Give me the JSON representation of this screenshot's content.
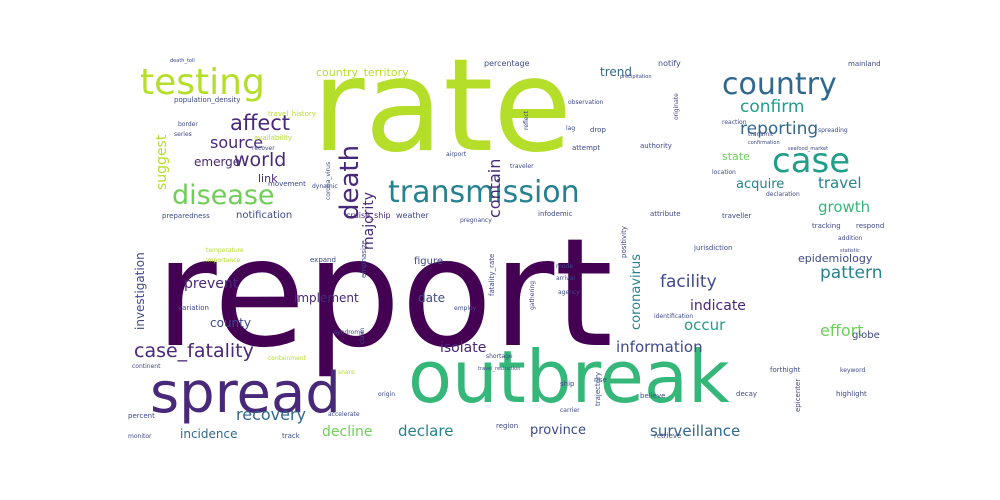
{
  "palette": {
    "deep_purple": "#440154",
    "purple": "#482878",
    "indigo": "#3e4989",
    "blue": "#31688e",
    "teal": "#26828e",
    "cyan_green": "#1f9e89",
    "green": "#35b779",
    "light_green": "#6ece58",
    "lime": "#b5de2b",
    "yellow": "#fde725"
  },
  "words": [
    {
      "text": "report",
      "weight": 1.0
    },
    {
      "text": "rate",
      "weight": 0.95
    },
    {
      "text": "outbreak",
      "weight": 0.72
    },
    {
      "text": "spread",
      "weight": 0.45
    },
    {
      "text": "testing",
      "weight": 0.3
    },
    {
      "text": "case",
      "weight": 0.3
    },
    {
      "text": "transmission",
      "weight": 0.3
    },
    {
      "text": "country",
      "weight": 0.26
    },
    {
      "text": "disease",
      "weight": 0.24
    },
    {
      "text": "death",
      "weight": 0.22
    },
    {
      "text": "affect",
      "weight": 0.18
    },
    {
      "text": "world",
      "weight": 0.16
    },
    {
      "text": "case_fatality",
      "weight": 0.16
    },
    {
      "text": "confirm",
      "weight": 0.15
    },
    {
      "text": "reporting",
      "weight": 0.15
    },
    {
      "text": "facility",
      "weight": 0.15
    },
    {
      "text": "pattern",
      "weight": 0.15
    },
    {
      "text": "source",
      "weight": 0.14
    },
    {
      "text": "contain",
      "weight": 0.14
    },
    {
      "text": "travel",
      "weight": 0.13
    },
    {
      "text": "growth",
      "weight": 0.13
    },
    {
      "text": "effort",
      "weight": 0.13
    },
    {
      "text": "recovery",
      "weight": 0.13
    },
    {
      "text": "suggest",
      "weight": 0.12
    },
    {
      "text": "majority",
      "weight": 0.12
    },
    {
      "text": "coronavirus",
      "weight": 0.12
    },
    {
      "text": "occur",
      "weight": 0.12
    },
    {
      "text": "information",
      "weight": 0.12
    },
    {
      "text": "declare",
      "weight": 0.12
    },
    {
      "text": "surveillance",
      "weight": 0.12
    },
    {
      "text": "prevent",
      "weight": 0.11
    },
    {
      "text": "indicate",
      "weight": 0.11
    },
    {
      "text": "isolate",
      "weight": 0.11
    },
    {
      "text": "decline",
      "weight": 0.11
    },
    {
      "text": "province",
      "weight": 0.11
    },
    {
      "text": "acquire",
      "weight": 0.11
    },
    {
      "text": "trend",
      "weight": 0.1
    },
    {
      "text": "investigation",
      "weight": 0.1
    },
    {
      "text": "emerge",
      "weight": 0.1
    },
    {
      "text": "implement",
      "weight": 0.1
    },
    {
      "text": "date",
      "weight": 0.1
    },
    {
      "text": "county",
      "weight": 0.1
    },
    {
      "text": "incidence",
      "weight": 0.1
    },
    {
      "text": "epidemiology",
      "weight": 0.09
    },
    {
      "text": "state",
      "weight": 0.09
    },
    {
      "text": "country_territory",
      "weight": 0.08
    },
    {
      "text": "link",
      "weight": 0.08
    },
    {
      "text": "notification",
      "weight": 0.07
    },
    {
      "text": "globe",
      "weight": 0.07
    },
    {
      "text": "figure",
      "weight": 0.07
    },
    {
      "text": "percentage",
      "weight": 0.05
    },
    {
      "text": "notify",
      "weight": 0.05
    },
    {
      "text": "population_density",
      "weight": 0.05
    },
    {
      "text": "cruise_ship",
      "weight": 0.05
    },
    {
      "text": "weather",
      "weight": 0.05
    },
    {
      "text": "preparedness",
      "weight": 0.05
    },
    {
      "text": "travel_history",
      "weight": 0.05
    },
    {
      "text": "variation",
      "weight": 0.05
    },
    {
      "text": "expand",
      "weight": 0.05
    },
    {
      "text": "emphasize",
      "weight": 0.05
    },
    {
      "text": "fatality_rate",
      "weight": 0.05
    },
    {
      "text": "jurisdiction",
      "weight": 0.05
    },
    {
      "text": "positivity",
      "weight": 0.05
    },
    {
      "text": "attempt",
      "weight": 0.05
    },
    {
      "text": "drop",
      "weight": 0.05
    },
    {
      "text": "authority",
      "weight": 0.05
    },
    {
      "text": "observation",
      "weight": 0.04
    },
    {
      "text": "importance",
      "weight": 0.04
    },
    {
      "text": "temperature",
      "weight": 0.04
    },
    {
      "text": "movement",
      "weight": 0.04
    },
    {
      "text": "dynamic",
      "weight": 0.04
    },
    {
      "text": "corona_virus",
      "weight": 0.04
    },
    {
      "text": "border",
      "weight": 0.04
    },
    {
      "text": "availability",
      "weight": 0.04
    },
    {
      "text": "reaction",
      "weight": 0.04
    },
    {
      "text": "transmit",
      "weight": 0.04
    },
    {
      "text": "location",
      "weight": 0.04
    },
    {
      "text": "declaration",
      "weight": 0.04
    },
    {
      "text": "traveller",
      "weight": 0.04
    },
    {
      "text": "tracking",
      "weight": 0.04
    },
    {
      "text": "respond",
      "weight": 0.04
    },
    {
      "text": "addition",
      "weight": 0.04
    },
    {
      "text": "identification",
      "weight": 0.04
    },
    {
      "text": "forthight",
      "weight": 0.04
    },
    {
      "text": "keyword",
      "weight": 0.04
    },
    {
      "text": "continent",
      "weight": 0.04
    },
    {
      "text": "containment",
      "weight": 0.04
    },
    {
      "text": "snare",
      "weight": 0.04
    },
    {
      "text": "mode",
      "weight": 0.04
    },
    {
      "text": "arrival",
      "weight": 0.04
    },
    {
      "text": "agency",
      "weight": 0.04
    },
    {
      "text": "epicenter",
      "weight": 0.04
    },
    {
      "text": "highlight",
      "weight": 0.04
    },
    {
      "text": "ship",
      "weight": 0.04
    },
    {
      "text": "rise",
      "weight": 0.04
    },
    {
      "text": "trajectory",
      "weight": 0.04
    },
    {
      "text": "believe",
      "weight": 0.04
    },
    {
      "text": "decay",
      "weight": 0.04
    },
    {
      "text": "region",
      "weight": 0.04
    },
    {
      "text": "carrier",
      "weight": 0.04
    },
    {
      "text": "retrieve",
      "weight": 0.04
    },
    {
      "text": "percent",
      "weight": 0.04
    },
    {
      "text": "accelerate",
      "weight": 0.04
    },
    {
      "text": "track",
      "weight": 0.04
    },
    {
      "text": "monitor",
      "weight": 0.04
    },
    {
      "text": "origin",
      "weight": 0.04
    },
    {
      "text": "infodemic",
      "weight": 0.04
    },
    {
      "text": "pregnancy",
      "weight": 0.04
    },
    {
      "text": "attribute",
      "weight": 0.04
    },
    {
      "text": "originate",
      "weight": 0.04
    },
    {
      "text": "mainland",
      "weight": 0.04
    },
    {
      "text": "precipitation",
      "weight": 0.03
    },
    {
      "text": "death_toll",
      "weight": 0.03
    },
    {
      "text": "employ",
      "weight": 0.03
    },
    {
      "text": "shortage",
      "weight": 0.03
    },
    {
      "text": "gathering",
      "weight": 0.03
    },
    {
      "text": "travel_restriction",
      "weight": 0.03
    },
    {
      "text": "spreading",
      "weight": 0.03
    },
    {
      "text": "seafood_market",
      "weight": 0.03
    },
    {
      "text": "statistic",
      "weight": 0.03
    },
    {
      "text": "airport",
      "weight": 0.03
    },
    {
      "text": "traveler",
      "weight": 0.03
    },
    {
      "text": "series",
      "weight": 0.03
    },
    {
      "text": "recover",
      "weight": 0.03
    },
    {
      "text": "confirmation",
      "weight": 0.03
    },
    {
      "text": "lag",
      "weight": 0.03
    },
    {
      "text": "reflect",
      "weight": 0.03
    },
    {
      "text": "syndrome",
      "weight": 0.03
    },
    {
      "text": "claim",
      "weight": 0.03
    }
  ]
}
